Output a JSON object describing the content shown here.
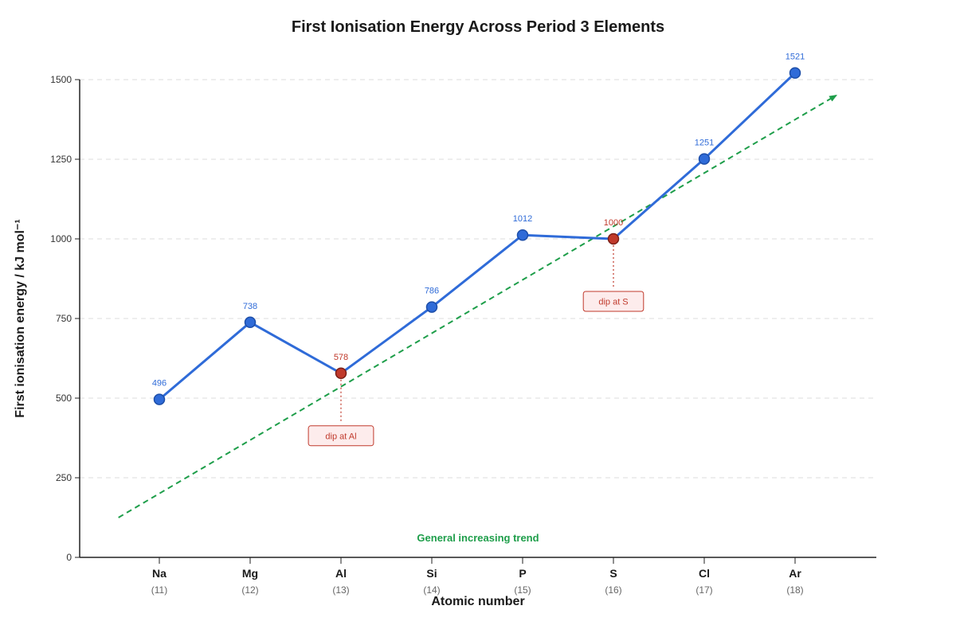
{
  "chart_data": {
    "type": "line",
    "title": "First Ionisation Energy Across Period 3 Elements",
    "xlabel": "Atomic number",
    "ylabel": "First ionisation energy / kJ mol⁻¹",
    "ylim": [
      0,
      1500
    ],
    "yticks": [
      0,
      250,
      500,
      750,
      1000,
      1250,
      1500
    ],
    "grid": true,
    "categories": [
      "Na",
      "Mg",
      "Al",
      "Si",
      "P",
      "S",
      "Cl",
      "Ar"
    ],
    "atomic_numbers": [
      "(11)",
      "(12)",
      "(13)",
      "(14)",
      "(15)",
      "(16)",
      "(17)",
      "(18)"
    ],
    "series": [
      {
        "values": [
          496,
          738,
          578,
          786,
          1012,
          1000,
          1251,
          1521
        ],
        "color": "#2f6bd8"
      }
    ],
    "highlighted": [
      "Al",
      "S"
    ],
    "highlight_color": "#c0392b",
    "annotations": [
      {
        "category": "Al",
        "text": "dip at Al"
      },
      {
        "category": "S",
        "text": "dip at S"
      }
    ],
    "trend": {
      "label": "General increasing trend",
      "color": "#1e9e4a",
      "start": {
        "x": 10.55,
        "y": 125
      },
      "end": {
        "x": 18.45,
        "y": 1450
      }
    }
  }
}
